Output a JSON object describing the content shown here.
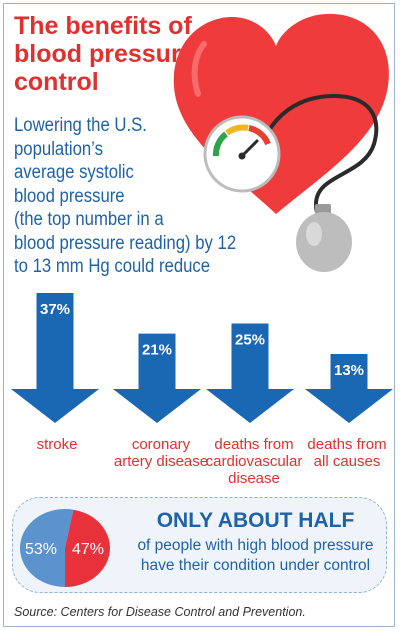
{
  "title_lines": [
    "The benefits of",
    "blood pressure",
    "control"
  ],
  "intro_lines": [
    "Lowering the U.S.",
    "population’s",
    "average systolic",
    "blood pressure",
    "(the top number in a",
    "blood pressure reading) by 12",
    "to 13 mm Hg could reduce"
  ],
  "reductions": [
    {
      "percent": 37,
      "label": "37%",
      "label_lines": [
        "stroke"
      ]
    },
    {
      "percent": 21,
      "label": "21%",
      "label_lines": [
        "coronary",
        "artery disease"
      ]
    },
    {
      "percent": 25,
      "label": "25%",
      "label_lines": [
        "deaths from",
        "cardiovascular",
        "disease"
      ]
    },
    {
      "percent": 13,
      "label": "13%",
      "label_lines": [
        "deaths from",
        "all causes"
      ]
    }
  ],
  "control": {
    "heading": "ONLY ABOUT HALF",
    "text_lines": [
      "of people with high blood pressure",
      "have their condition under control"
    ],
    "controlled_label": "53%",
    "uncontrolled_label": "47%",
    "controlled_fraction": 0.53
  },
  "source": "Source: Centers for Disease Control and Prevention.",
  "colors": {
    "red": "#e03131",
    "blue": "#1f62a8",
    "arrow_blue": "#1a67b3",
    "pie_blue": "#5b93cf",
    "pie_red": "#e8313a"
  },
  "icons": [
    "heart-icon",
    "gauge-icon",
    "inflation-bulb-icon",
    "down-arrow-icon"
  ]
}
